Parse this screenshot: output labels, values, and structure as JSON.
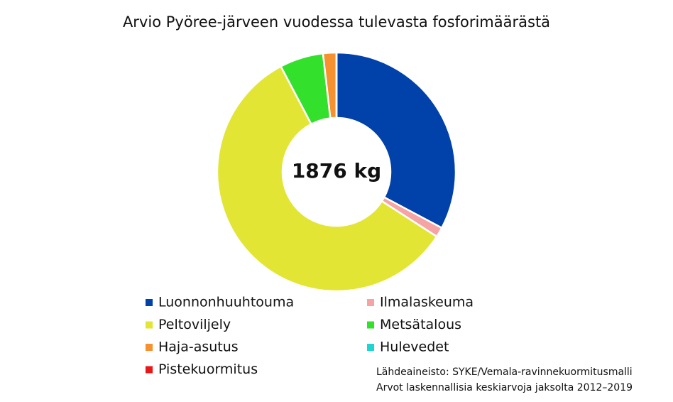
{
  "chart_data": {
    "type": "donut",
    "title": "Arvio Pyöree-järveen vuodessa tulevasta fosforimäärästä",
    "center_label": "1876 kg",
    "categories": [
      "Luonnonhuuhtouma",
      "Ilmalaskeuma",
      "Peltoviljely",
      "Metsätalous",
      "Haja-asutus",
      "Hulevedet",
      "Pistekuormitus"
    ],
    "values": [
      615,
      25,
      1091,
      111,
      34,
      0,
      0
    ],
    "colors": [
      "#0041aa",
      "#f5a3a3",
      "#e3e535",
      "#33e02b",
      "#f5922f",
      "#1ed6d0",
      "#e81818"
    ],
    "source": [
      "Lähdeaineisto: SYKE/Vemala-ravinnekuormitusmalli",
      "Arvot laskennallisia keskiarvoja jaksolta 2012–2019"
    ]
  }
}
